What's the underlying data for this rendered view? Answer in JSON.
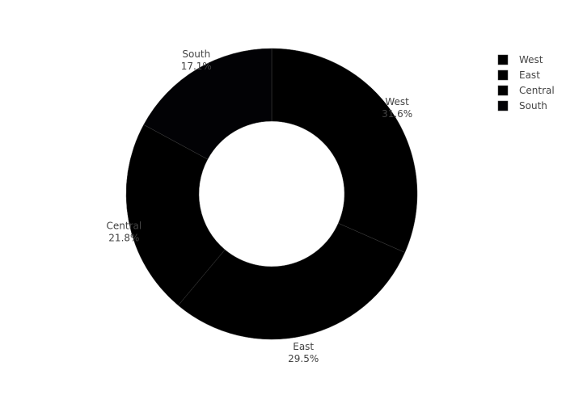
{
  "chart_data": {
    "type": "pie",
    "hole": 0.5,
    "direction": "clockwise",
    "start_angle_deg": 90,
    "sort_desc": true,
    "slices": [
      {
        "label": "West",
        "value": 31.6,
        "text": "31.6%",
        "color": "#000000"
      },
      {
        "label": "East",
        "value": 29.5,
        "text": "29.5%",
        "color": "#000000"
      },
      {
        "label": "Central",
        "value": 21.8,
        "text": "21.8%",
        "color": "#000000"
      },
      {
        "label": "South",
        "value": 17.1,
        "text": "17.1%",
        "color": "#020205"
      }
    ],
    "slice_border_color": "#444444",
    "legend": {
      "position": "top-right",
      "items": [
        "West",
        "East",
        "Central",
        "South"
      ]
    }
  }
}
